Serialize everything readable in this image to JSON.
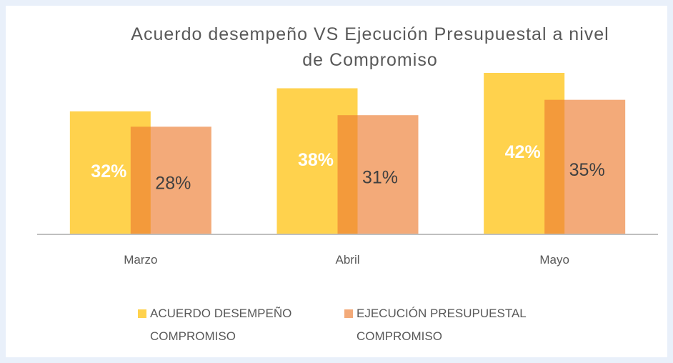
{
  "chart_data": {
    "type": "bar",
    "title": "Acuerdo desempeño VS Ejecución Presupuestal a nivel de Compromiso",
    "categories": [
      "Marzo",
      "Abril",
      "Mayo"
    ],
    "series": [
      {
        "name": "ACUERDO DESEMPEÑO COMPROMISO",
        "color": "#ffd24d",
        "values": [
          32,
          38,
          42
        ],
        "value_labels": [
          "32%",
          "38%",
          "42%"
        ]
      },
      {
        "name": "EJECUCIÓN PRESUPUESTAL COMPROMISO",
        "color": "#ed7d31",
        "values": [
          28,
          31,
          35
        ],
        "value_labels": [
          "28%",
          "31%",
          "35%"
        ]
      }
    ],
    "legend": "bottom"
  }
}
